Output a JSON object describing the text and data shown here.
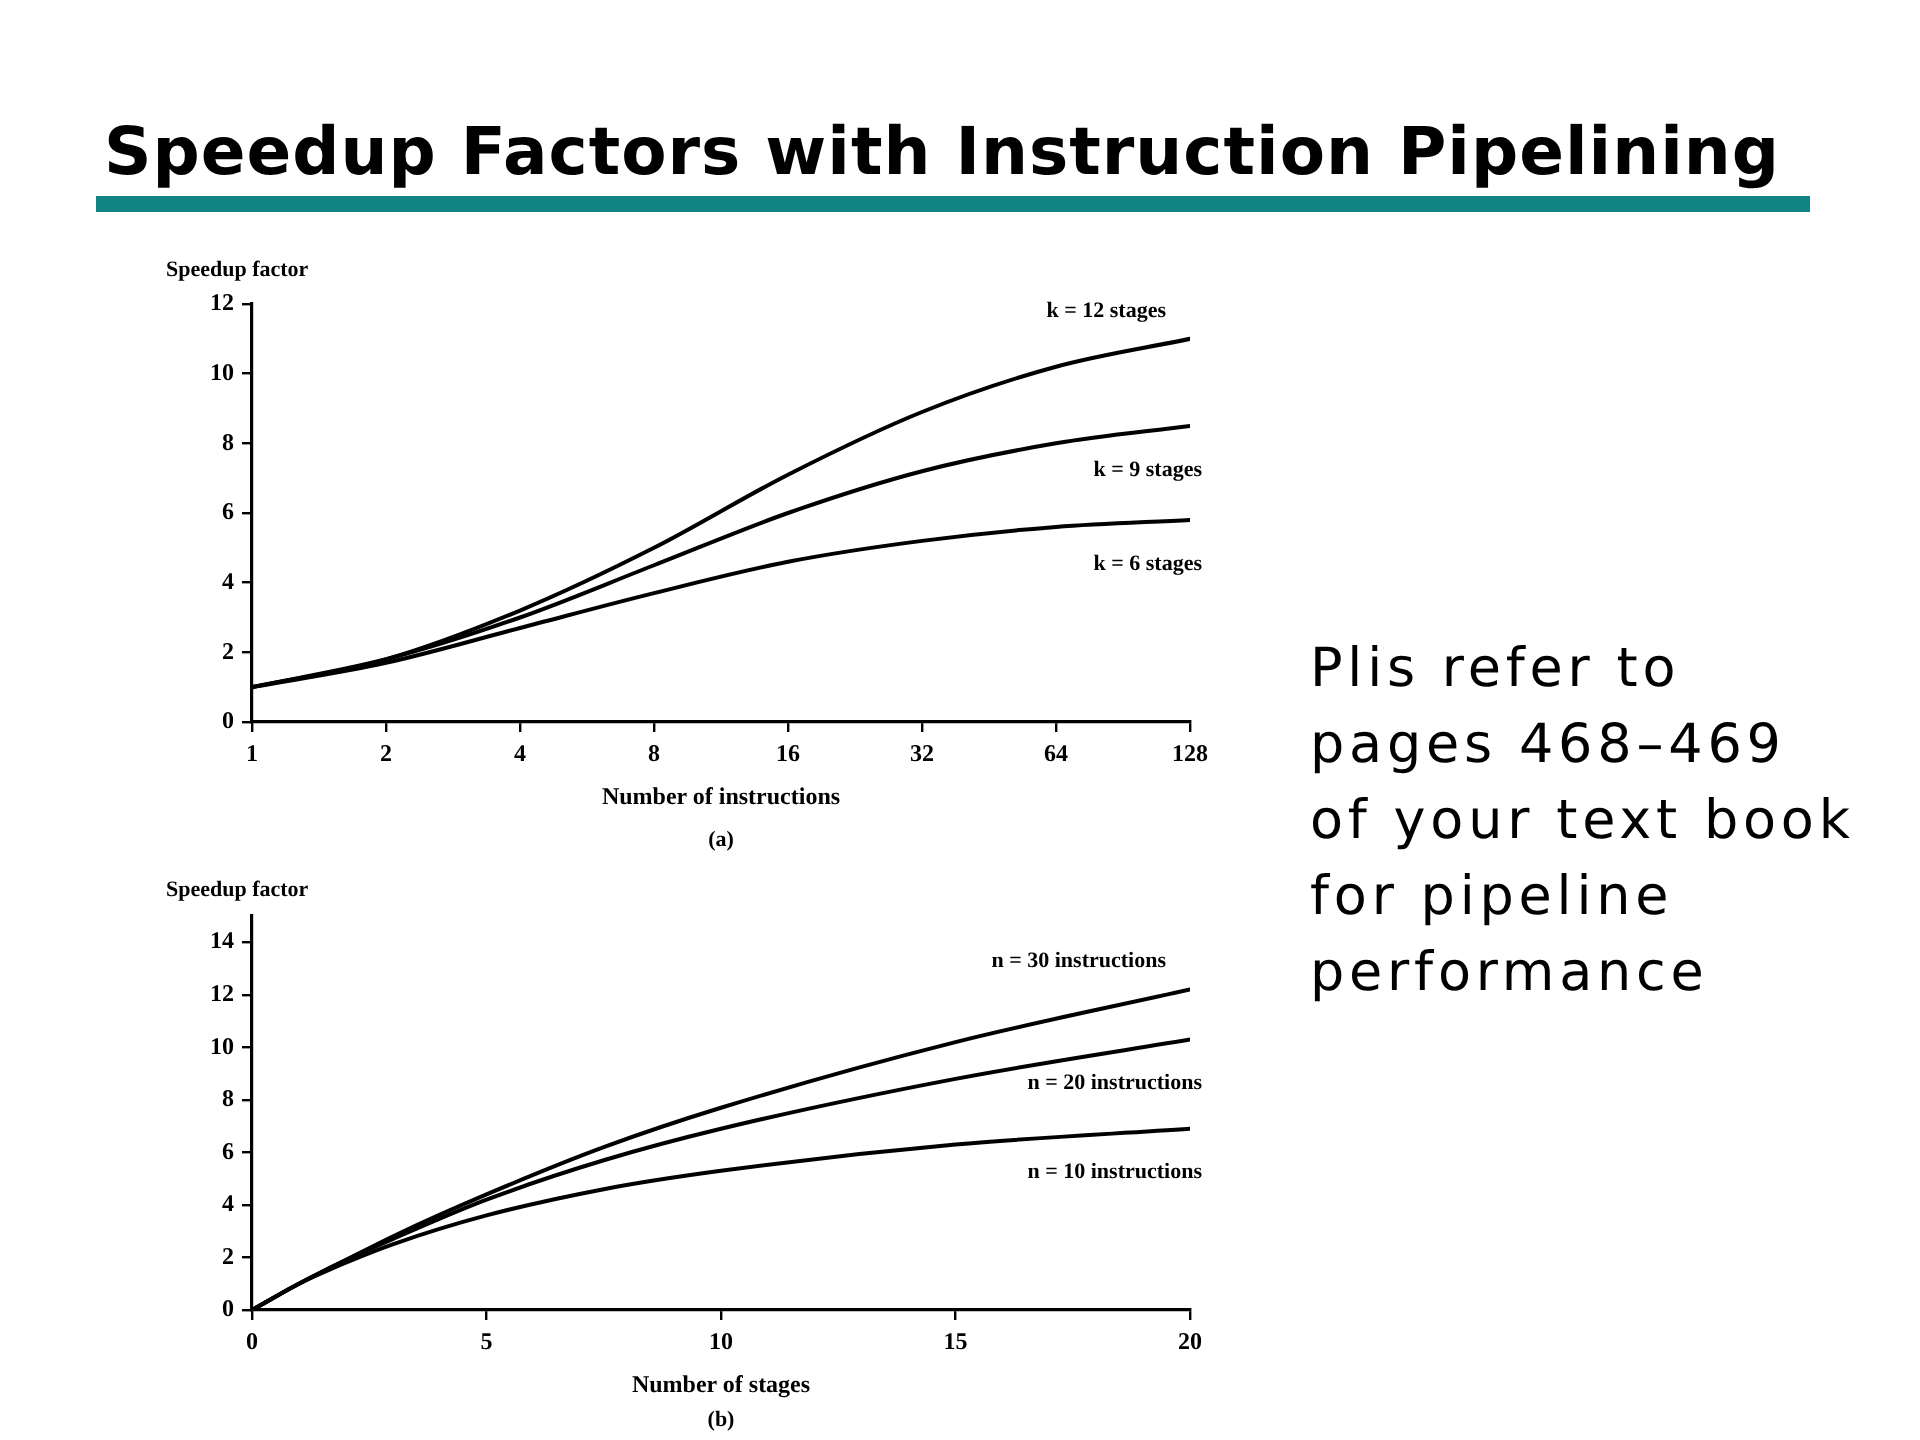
{
  "chart_data": [
    {
      "type": "line",
      "title": "Speedup Factors with Instruction Pipelining",
      "xlabel": "Number of instructions",
      "ylabel": "Speedup factor",
      "log": "x",
      "grid": false,
      "legend": false,
      "marker": "none",
      "line_style": "solid",
      "x": [
        1,
        2,
        4,
        8,
        16,
        32,
        64,
        128
      ],
      "xlim": [
        1,
        128
      ],
      "xticks": [
        1,
        2,
        4,
        8,
        16,
        32,
        64,
        128
      ],
      "ylim": [
        0,
        12
      ],
      "yticks": [
        0,
        2,
        4,
        6,
        8,
        10,
        12
      ],
      "series": [
        {
          "name": "k = 12 stages",
          "color": "#000000",
          "values": [
            1.0,
            1.8,
            3.2,
            5.0,
            7.1,
            8.9,
            10.2,
            11.0
          ]
        },
        {
          "name": "k = 9 stages",
          "color": "#000000",
          "values": [
            1.0,
            1.8,
            3.0,
            4.5,
            6.0,
            7.2,
            8.0,
            8.5
          ]
        },
        {
          "name": "k = 6 stages",
          "color": "#000000",
          "values": [
            1.0,
            1.7,
            2.7,
            3.7,
            4.6,
            5.2,
            5.6,
            5.8
          ]
        }
      ],
      "annotations": [
        "(a)",
        "Plis refer to\npages 468–469\nof your text book\nfor pipeline\nperformance"
      ]
    },
    {
      "type": "line",
      "xlabel": "Number of stages",
      "ylabel": "Speedup factor",
      "grid": false,
      "legend": false,
      "marker": "none",
      "line_style": "solid",
      "x": [
        0,
        1,
        2,
        3,
        5,
        7.5,
        10,
        15,
        20
      ],
      "xlim": [
        0,
        20
      ],
      "xticks": [
        0,
        5,
        10,
        15,
        20
      ],
      "ylim": [
        0,
        15
      ],
      "yticks": [
        0,
        2,
        4,
        6,
        8,
        10,
        12,
        14
      ],
      "series": [
        {
          "name": "n = 30 instructions",
          "color": "#000000",
          "values": [
            0,
            1.0,
            1.9,
            2.8,
            4.4,
            6.2,
            7.7,
            10.2,
            12.2
          ]
        },
        {
          "name": "n = 20 instructions",
          "color": "#000000",
          "values": [
            0,
            1.0,
            1.9,
            2.7,
            4.2,
            5.7,
            6.9,
            8.8,
            10.3
          ]
        },
        {
          "name": "n = 10 instructions",
          "color": "#000000",
          "values": [
            0,
            1.0,
            1.8,
            2.5,
            3.6,
            4.6,
            5.3,
            6.3,
            6.9
          ]
        }
      ],
      "annotations": [
        "(b)"
      ]
    }
  ]
}
